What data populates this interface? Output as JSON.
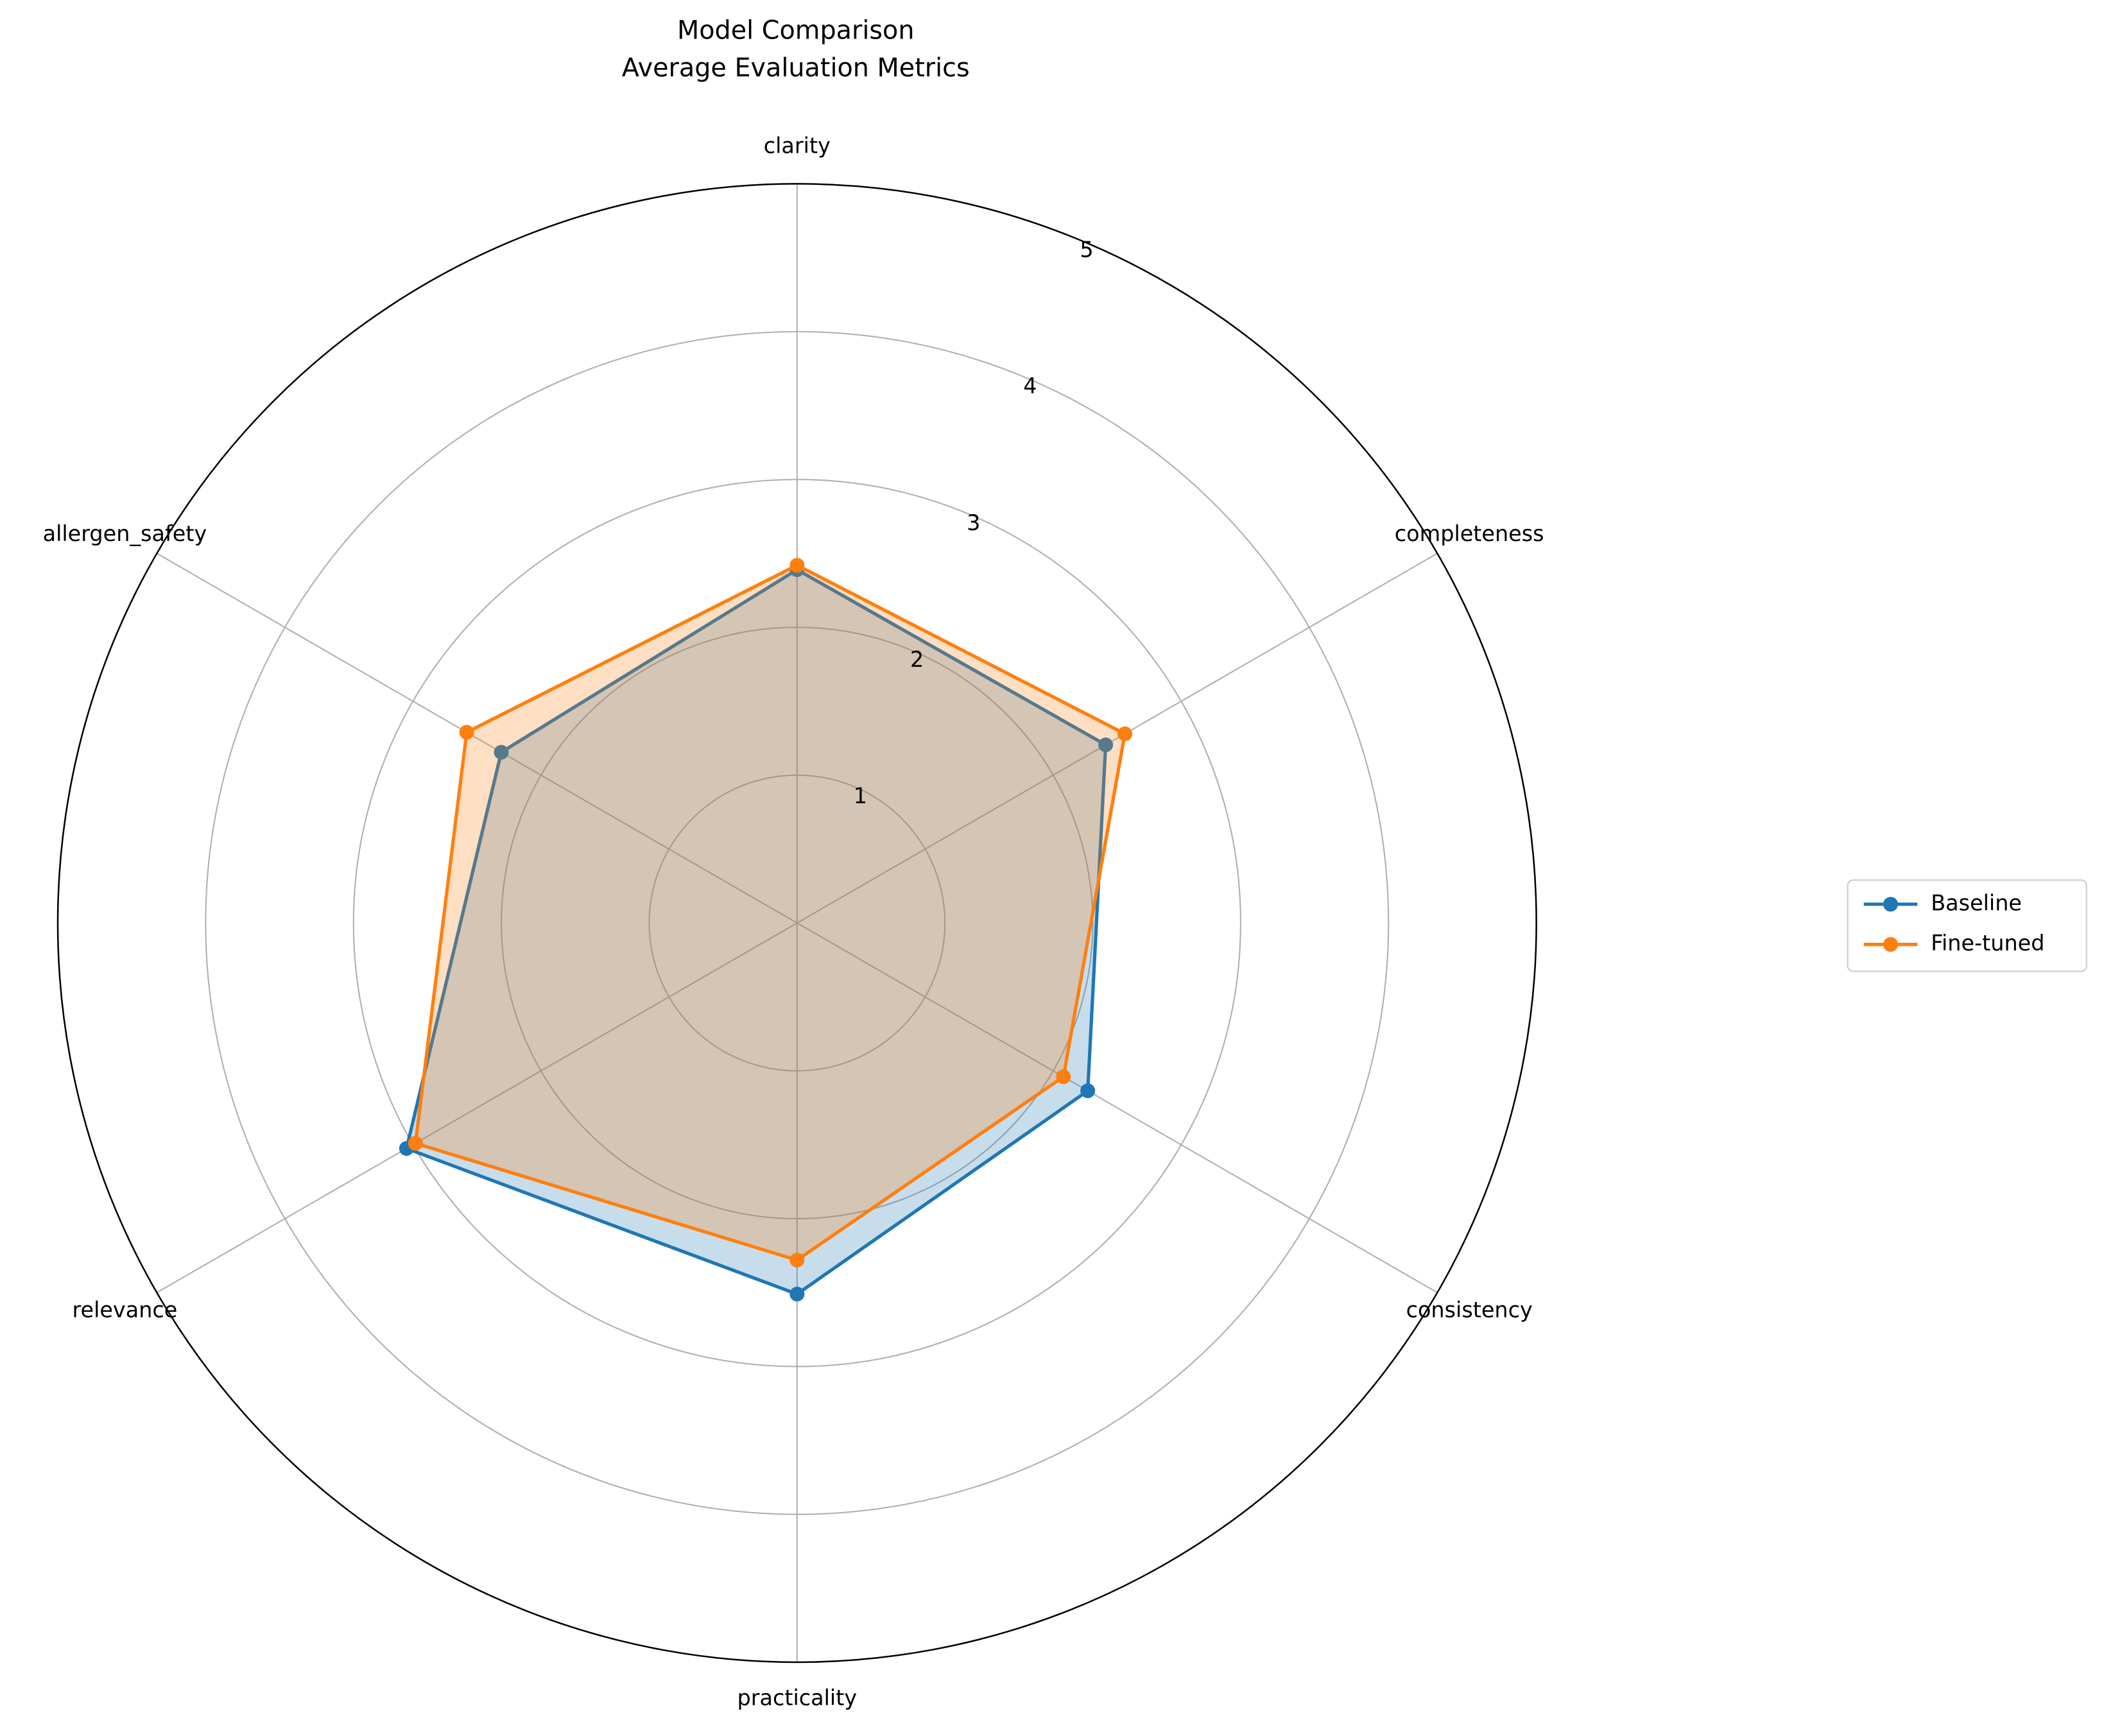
{
  "chart_data": {
    "type": "radar",
    "title": "Model Comparison",
    "subtitle": "Average Evaluation Metrics",
    "categories": [
      "clarity",
      "completeness",
      "consistency",
      "practicality",
      "relevance",
      "allergen_safety"
    ],
    "series": [
      {
        "name": "Baseline",
        "color": "#1f77b4",
        "values": [
          2.39,
          2.41,
          2.27,
          2.51,
          3.05,
          2.31
        ]
      },
      {
        "name": "Fine-tuned",
        "color": "#ff7f0e",
        "values": [
          2.42,
          2.56,
          2.08,
          2.28,
          2.98,
          2.58
        ]
      }
    ],
    "ylim": [
      0,
      5
    ],
    "yticks": [
      1,
      2,
      3,
      4,
      5
    ],
    "grid": true,
    "legend": "right"
  }
}
